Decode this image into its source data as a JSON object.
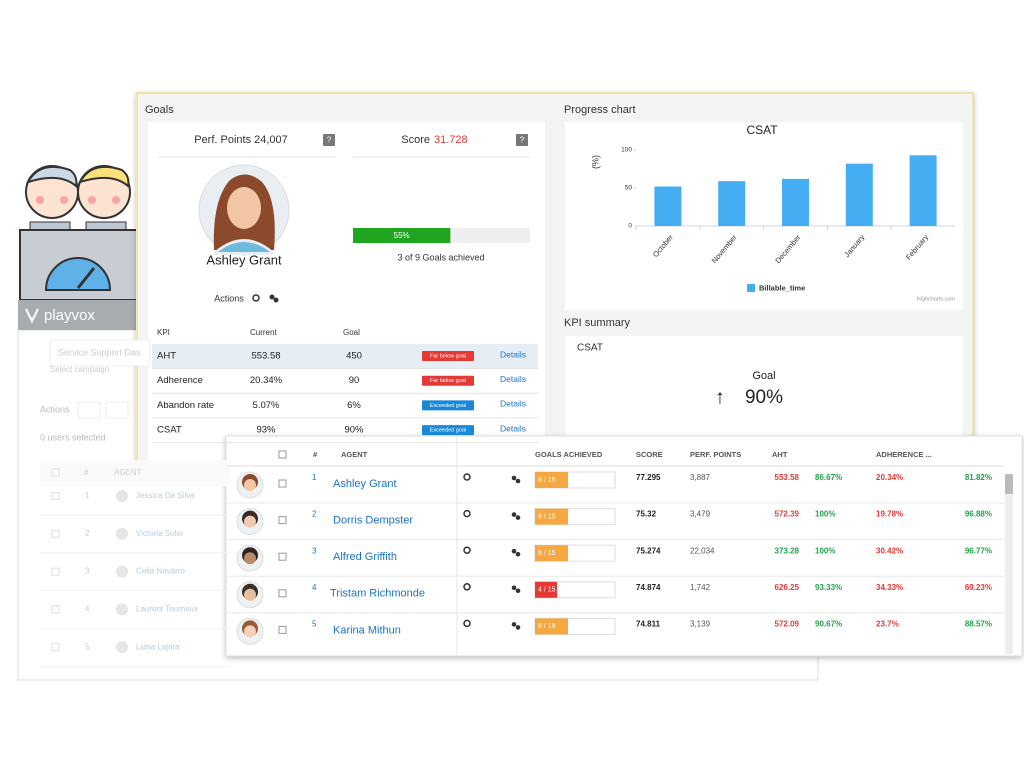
{
  "background": {
    "logo": "playvox",
    "campaign_input": "Service Support Das",
    "campaign_hint": "Select campaign",
    "actions": "Actions",
    "users_selected": "0 users selected",
    "columns": [
      "#",
      "AGENT"
    ],
    "rows": [
      [
        "1",
        "Jessica Da Silva"
      ],
      [
        "2",
        "Victoria Soler"
      ],
      [
        "3",
        "Celia Navarro"
      ],
      [
        "4",
        "Laurent Tourneux"
      ],
      [
        "5",
        "Luisa Lajara"
      ]
    ]
  },
  "goals": {
    "title": "Goals",
    "perf_points": "Perf. Points 24,007",
    "help": "?",
    "score_label": "Score",
    "score": "31.728",
    "agent": "Ashley Grant",
    "progress": {
      "value": 55,
      "label": "55%"
    },
    "goals_achieved": "3 of 9 Goals achieved",
    "actions": "Actions",
    "kpi_columns": [
      "KPI",
      "Current",
      "Goal"
    ],
    "kpi_rows": [
      [
        "AHT",
        "553.58",
        "450",
        "Far below goal",
        "Details"
      ],
      [
        "Adherence",
        "20.34%",
        "90",
        "Far below goal",
        "Details"
      ],
      [
        "Abandon rate",
        "5.07%",
        "6%",
        "Exceeded goal",
        "Details"
      ],
      [
        "CSAT",
        "93%",
        "90%",
        "Exceeded goal",
        "Details"
      ]
    ]
  },
  "progress_chart": {
    "title": "Progress chart"
  },
  "chart_data": {
    "type": "bar",
    "title": "CSAT",
    "y_label": "(%)",
    "categories": [
      "October",
      "November",
      "December",
      "January",
      "February"
    ],
    "series": [
      {
        "name": "Billable_time",
        "color": "#45aef2",
        "values": [
          52,
          59,
          62,
          82,
          93
        ]
      }
    ],
    "ylim": [
      0,
      100
    ],
    "yticks": [
      0,
      50,
      100
    ],
    "credit": "Highcharts.com"
  },
  "kpi_summary": {
    "title": "KPI summary",
    "kpi": "CSAT",
    "goal_label": "Goal",
    "arrow": "↑",
    "goal": "90%"
  },
  "leaderboard": {
    "columns": [
      "#",
      "AGENT",
      "GOALS ACHIEVED",
      "SCORE",
      "PERF. POINTS",
      "AHT",
      "ADHERENCE ..."
    ],
    "rows": [
      {
        "rank": "1",
        "agent": "Ashley Grant",
        "goals": "6 / 15",
        "score": "77.295",
        "perf_points": "3,887",
        "aht": "553.58",
        "aht_pct": "86.67%",
        "adherence": "20.34%",
        "adherence_pct": "81.82%"
      },
      {
        "rank": "2",
        "agent": "Dorris Dempster",
        "goals": "6 / 15",
        "score": "75.32",
        "perf_points": "3,479",
        "aht": "572.39",
        "aht_pct": "100%",
        "adherence": "19.78%",
        "adherence_pct": "96.88%"
      },
      {
        "rank": "3",
        "agent": "Alfred Griffith",
        "goals": "6 / 15",
        "score": "75.274",
        "perf_points": "22,034",
        "aht": "373.28",
        "aht_pct": "100%",
        "adherence": "30.42%",
        "adherence_pct": "96.77%"
      },
      {
        "rank": "4",
        "agent": "Tristam Richmonde",
        "goals": "4 / 15",
        "score": "74.874",
        "perf_points": "1,742",
        "aht": "626.25",
        "aht_pct": "93.33%",
        "adherence": "34.33%",
        "adherence_pct": "69.23%"
      },
      {
        "rank": "5",
        "agent": "Karina Mithun",
        "goals": "6 / 15",
        "score": "74.811",
        "perf_points": "3,139",
        "aht": "572.09",
        "aht_pct": "90.67%",
        "adherence": "23.7%",
        "adherence_pct": "88.57%"
      }
    ]
  }
}
